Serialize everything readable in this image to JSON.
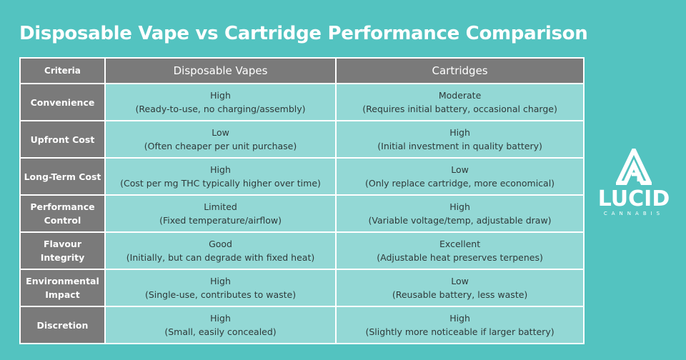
{
  "title": "Disposable Vape vs Cartridge Performance Comparison",
  "headers": [
    "Criteria",
    "Disposable Vapes",
    "Cartridges"
  ],
  "rows": [
    {
      "criteria": "Convenience",
      "disposable": {
        "rating": "High",
        "note": "(Ready-to-use, no charging/assembly)"
      },
      "cartridge": {
        "rating": "Moderate",
        "note": "(Requires initial battery, occasional charge)"
      }
    },
    {
      "criteria": "Upfront Cost",
      "disposable": {
        "rating": "Low",
        "note": "(Often cheaper per unit purchase)"
      },
      "cartridge": {
        "rating": "High",
        "note": "(Initial investment in quality battery)"
      }
    },
    {
      "criteria": "Long-Term Cost",
      "disposable": {
        "rating": "High",
        "note": "(Cost per mg THC typically higher over time)"
      },
      "cartridge": {
        "rating": "Low",
        "note": "(Only replace cartridge, more economical)"
      }
    },
    {
      "criteria": "Performance Control",
      "disposable": {
        "rating": "Limited",
        "note": "(Fixed temperature/airflow)"
      },
      "cartridge": {
        "rating": "High",
        "note": "(Variable voltage/temp, adjustable draw)"
      }
    },
    {
      "criteria": "Flavour Integrity",
      "disposable": {
        "rating": "Good",
        "note": "(Initially, but can degrade with fixed heat)"
      },
      "cartridge": {
        "rating": "Excellent",
        "note": "(Adjustable heat preserves terpenes)"
      }
    },
    {
      "criteria": "Environmental Impact",
      "disposable": {
        "rating": "High",
        "note": "(Single-use, contributes to waste)"
      },
      "cartridge": {
        "rating": "Low",
        "note": "(Reusable battery, less waste)"
      }
    },
    {
      "criteria": "Discretion",
      "disposable": {
        "rating": "High",
        "note": "(Small, easily concealed)"
      },
      "cartridge": {
        "rating": "High",
        "note": "(Slightly more noticeable if larger battery)"
      }
    }
  ],
  "logo": {
    "word": "LUCID",
    "sub": "CANNABIS"
  },
  "colors": {
    "background": "#53c3c0",
    "header": "#7a7a7a",
    "cell": "#93d8d5"
  }
}
